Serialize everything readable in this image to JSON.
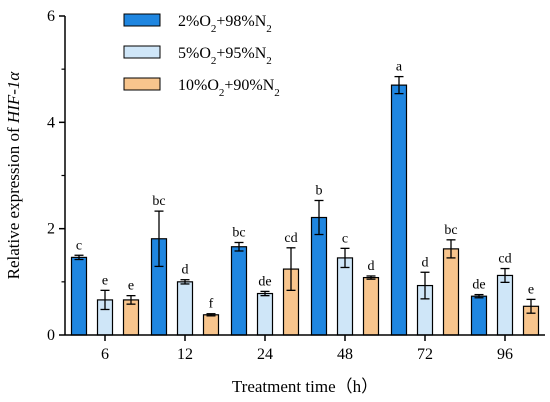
{
  "chart_data": {
    "type": "bar",
    "categories": [
      "6",
      "12",
      "24",
      "48",
      "72",
      "96"
    ],
    "xlabel": "Treatment time（h）",
    "ylabel_parts": [
      {
        "text": "Relative expression of ",
        "italic": false
      },
      {
        "text": "HIF-1α",
        "italic": true
      }
    ],
    "ylim": [
      0,
      6
    ],
    "yticks": [
      0,
      2,
      4,
      6
    ],
    "legend_position": "top-left",
    "series": [
      {
        "name_parts": [
          {
            "t": "2%O"
          },
          {
            "t": "2",
            "sub": true
          },
          {
            "t": "+98%N"
          },
          {
            "t": "2",
            "sub": true
          }
        ],
        "color": "#1f86e0",
        "values": [
          1.46,
          1.81,
          1.66,
          2.21,
          4.7,
          0.73
        ],
        "errors": [
          0.04,
          0.52,
          0.08,
          0.32,
          0.16,
          0.03
        ],
        "significance": [
          "c",
          "bc",
          "bc",
          "b",
          "a",
          "de"
        ]
      },
      {
        "name_parts": [
          {
            "t": "5%O"
          },
          {
            "t": "2",
            "sub": true
          },
          {
            "t": "+95%N"
          },
          {
            "t": "2",
            "sub": true
          }
        ],
        "color": "#cfe6f8",
        "values": [
          0.66,
          1.0,
          0.78,
          1.45,
          0.93,
          1.12
        ],
        "errors": [
          0.18,
          0.04,
          0.04,
          0.18,
          0.25,
          0.13
        ],
        "significance": [
          "e",
          "d",
          "de",
          "c",
          "d",
          "cd"
        ]
      },
      {
        "name_parts": [
          {
            "t": "10%O"
          },
          {
            "t": "2",
            "sub": true
          },
          {
            "t": "+90%N"
          },
          {
            "t": "2",
            "sub": true
          }
        ],
        "color": "#f8c58d",
        "values": [
          0.66,
          0.38,
          1.24,
          1.08,
          1.62,
          0.54
        ],
        "errors": [
          0.08,
          0.02,
          0.4,
          0.03,
          0.17,
          0.13
        ],
        "significance": [
          "e",
          "f",
          "cd",
          "d",
          "bc",
          "e"
        ]
      }
    ]
  }
}
